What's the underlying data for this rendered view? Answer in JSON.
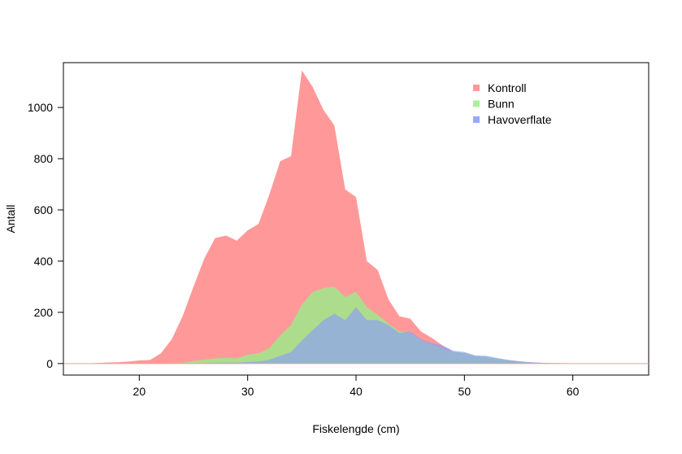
{
  "chart_data": {
    "type": "area",
    "title": "",
    "xlabel": "Fiskelengde (cm)",
    "ylabel": "Antall",
    "xlim": [
      13,
      67
    ],
    "ylim": [
      -45,
      1175
    ],
    "xticks": [
      20,
      30,
      40,
      50,
      60
    ],
    "yticks": [
      0,
      200,
      400,
      600,
      800,
      1000
    ],
    "legend_position": "top-right",
    "series": [
      {
        "name": "Kontroll",
        "color": "#ff9999",
        "opacity": 1.0,
        "x": [
          13,
          14,
          15,
          16,
          17,
          18,
          19,
          20,
          21,
          22,
          23,
          24,
          25,
          26,
          27,
          28,
          29,
          30,
          31,
          32,
          33,
          34,
          35,
          36,
          37,
          38,
          39,
          40,
          41,
          42,
          43,
          44,
          45,
          46,
          47,
          48,
          49,
          50,
          51,
          52,
          53,
          54,
          55,
          56,
          57,
          58,
          59,
          60,
          61,
          62,
          63,
          64,
          65,
          66,
          67
        ],
        "values": [
          0,
          0,
          0,
          2,
          4,
          5,
          8,
          12,
          14,
          40,
          95,
          185,
          300,
          410,
          490,
          500,
          480,
          520,
          545,
          660,
          790,
          810,
          1145,
          1080,
          990,
          930,
          680,
          650,
          400,
          365,
          250,
          185,
          175,
          125,
          100,
          70,
          45,
          40,
          28,
          22,
          15,
          12,
          8,
          5,
          3,
          2,
          2,
          1,
          1,
          1,
          0,
          0,
          0,
          0,
          0
        ]
      },
      {
        "name": "Bunn",
        "color": "#99ee88",
        "opacity": 0.8,
        "x": [
          13,
          14,
          15,
          16,
          17,
          18,
          19,
          20,
          21,
          22,
          23,
          24,
          25,
          26,
          27,
          28,
          29,
          30,
          31,
          32,
          33,
          34,
          35,
          36,
          37,
          38,
          39,
          40,
          41,
          42,
          43,
          44,
          45,
          46,
          47,
          48,
          49,
          50,
          51,
          52,
          53,
          54,
          55,
          56,
          57,
          58,
          59,
          60,
          61,
          62,
          63,
          64,
          65,
          66,
          67
        ],
        "values": [
          0,
          0,
          0,
          0,
          0,
          0,
          0,
          0,
          0,
          1,
          2,
          4,
          10,
          15,
          20,
          22,
          20,
          35,
          40,
          60,
          110,
          150,
          230,
          280,
          295,
          300,
          260,
          280,
          220,
          190,
          155,
          125,
          120,
          90,
          75,
          60,
          45,
          42,
          30,
          28,
          20,
          12,
          8,
          5,
          3,
          2,
          1,
          1,
          0,
          0,
          0,
          0,
          0,
          0,
          0
        ]
      },
      {
        "name": "Havoverflate",
        "color": "#8899ff",
        "opacity": 0.62,
        "x": [
          13,
          14,
          15,
          16,
          17,
          18,
          19,
          20,
          21,
          22,
          23,
          24,
          25,
          26,
          27,
          28,
          29,
          30,
          31,
          32,
          33,
          34,
          35,
          36,
          37,
          38,
          39,
          40,
          41,
          42,
          43,
          44,
          45,
          46,
          47,
          48,
          49,
          50,
          51,
          52,
          53,
          54,
          55,
          56,
          57,
          58,
          59,
          60,
          61,
          62,
          63,
          64,
          65,
          66,
          67
        ],
        "values": [
          0,
          0,
          0,
          0,
          0,
          0,
          0,
          0,
          0,
          0,
          0,
          0,
          1,
          2,
          3,
          4,
          4,
          6,
          8,
          15,
          30,
          45,
          90,
          130,
          170,
          195,
          170,
          220,
          170,
          170,
          150,
          120,
          125,
          95,
          80,
          70,
          50,
          45,
          32,
          30,
          22,
          15,
          10,
          6,
          3,
          2,
          1,
          1,
          0,
          0,
          0,
          0,
          0,
          0,
          0
        ]
      }
    ]
  }
}
